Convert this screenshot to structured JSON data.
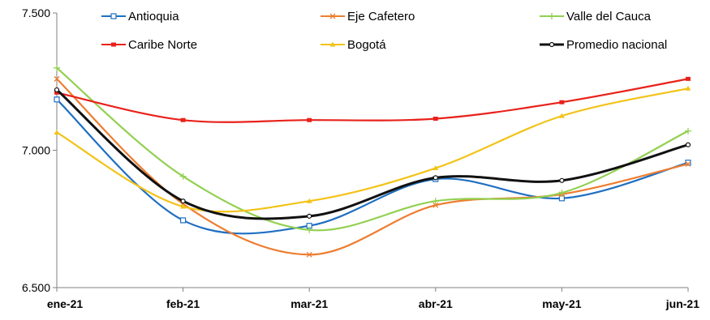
{
  "chart_data": {
    "type": "line",
    "title": "",
    "xlabel": "",
    "ylabel": "",
    "categories": [
      "ene-21",
      "feb-21",
      "mar-21",
      "abr-21",
      "may-21",
      "jun-21"
    ],
    "ylim": [
      6500,
      7500
    ],
    "y_ticks": [
      "6.500",
      "7.000",
      "7.500"
    ],
    "grid": false,
    "legend_position": "top",
    "series": [
      {
        "name": "Antioquia",
        "color": "#1f6fc1",
        "marker": "square-open",
        "values": [
          7185,
          6745,
          6725,
          6895,
          6825,
          6955
        ]
      },
      {
        "name": "Eje Cafetero",
        "color": "#ed7d31",
        "marker": "x",
        "values": [
          7260,
          6805,
          6620,
          6800,
          6840,
          6950
        ]
      },
      {
        "name": "Valle del Cauca",
        "color": "#92d050",
        "marker": "plus",
        "values": [
          7300,
          6905,
          6710,
          6815,
          6845,
          7070
        ]
      },
      {
        "name": "Caribe Norte",
        "color": "#e8221b",
        "marker": "dash",
        "values": [
          7210,
          7110,
          7110,
          7115,
          7175,
          7260
        ]
      },
      {
        "name": "Bogotá",
        "color": "#f2c318",
        "marker": "triangle",
        "values": [
          7065,
          6795,
          6815,
          6935,
          7125,
          7225
        ]
      },
      {
        "name": "Promedio nacional",
        "color": "#111111",
        "marker": "dot",
        "values": [
          7220,
          6815,
          6760,
          6900,
          6890,
          7020
        ]
      }
    ]
  }
}
